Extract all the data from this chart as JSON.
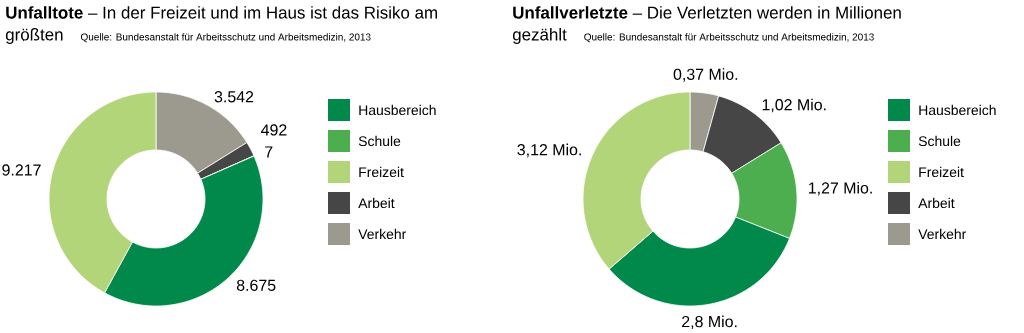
{
  "chart_data": [
    {
      "type": "donut",
      "title": "**Unfalltote** – In der Freizeit und im Haus ist das Risiko am größten",
      "subtitle": "Quelle: Bundesanstalt für Arbeitsschutz und Arbeitsmedizin, 2013",
      "categories": [
        "Hausbereich",
        "Schule",
        "Freizeit",
        "Arbeit",
        "Verkehr"
      ],
      "values": [
        8675,
        7,
        9217,
        492,
        3542
      ],
      "value_labels": [
        "8.675",
        "7",
        "9.217",
        "492",
        "3.542"
      ],
      "colors": [
        "#00894a",
        "#4cae4f",
        "#b3d57a",
        "#464646",
        "#9c9a8f"
      ],
      "legend": "right"
    },
    {
      "type": "donut",
      "title": "**Unfallverletzte** – Die Verletzten werden in Millionen gezählt",
      "subtitle": "Quelle: Bundesanstalt für Arbeitsschutz und Arbeitsmedizin, 2013",
      "categories": [
        "Hausbereich",
        "Schule",
        "Freizeit",
        "Arbeit",
        "Verkehr"
      ],
      "values": [
        2.8,
        1.27,
        3.12,
        1.02,
        0.37
      ],
      "value_labels": [
        "2,8 Mio.",
        "1,27 Mio.",
        "3,12 Mio.",
        "1,02 Mio.",
        "0,37 Mio."
      ],
      "colors": [
        "#00894a",
        "#4cae4f",
        "#b3d57a",
        "#464646",
        "#9c9a8f"
      ],
      "legend": "right"
    }
  ]
}
